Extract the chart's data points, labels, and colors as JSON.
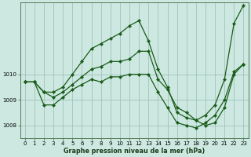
{
  "xlabel": "Graphe pression niveau de la mer (hPa)",
  "bg_color": "#cce8e0",
  "grid_color": "#99bbb5",
  "line_color": "#1a5c1a",
  "series1_x": [
    0,
    1,
    2,
    3,
    4,
    5,
    6,
    7,
    8,
    9,
    10,
    11,
    12,
    13,
    14,
    15,
    16,
    17,
    18,
    19,
    20,
    21,
    22,
    23
  ],
  "series1_y": [
    1009.7,
    1009.7,
    1009.3,
    1009.3,
    1009.5,
    1010.0,
    1010.5,
    1011.0,
    1011.2,
    1011.4,
    1011.6,
    1011.9,
    1012.1,
    1011.3,
    1010.2,
    1009.5,
    1008.5,
    1008.3,
    1008.2,
    1008.4,
    1008.8,
    1009.8,
    1012.0,
    1012.7
  ],
  "series2_x": [
    0,
    1,
    2,
    3,
    4,
    5,
    6,
    7,
    8,
    9,
    10,
    11,
    12,
    13,
    14,
    15,
    16,
    17,
    18,
    19,
    20,
    21,
    22,
    23
  ],
  "series2_y": [
    1009.7,
    1009.7,
    1009.3,
    1009.1,
    1009.3,
    1009.6,
    1009.9,
    1010.2,
    1010.3,
    1010.5,
    1010.5,
    1010.6,
    1010.9,
    1010.9,
    1009.8,
    1009.4,
    1008.7,
    1008.5,
    1008.2,
    1008.0,
    1008.1,
    1008.7,
    1010.0,
    1010.4
  ],
  "series3_x": [
    0,
    1,
    2,
    3,
    4,
    5,
    6,
    7,
    8,
    9,
    10,
    11,
    12,
    13,
    14,
    15,
    16,
    17,
    18,
    19,
    20,
    21,
    22,
    23
  ],
  "series3_y": [
    1009.7,
    1009.7,
    1008.8,
    1008.8,
    1009.1,
    1009.4,
    1009.6,
    1009.8,
    1009.7,
    1009.9,
    1009.9,
    1010.0,
    1010.0,
    1010.0,
    1009.3,
    1008.7,
    1008.1,
    1008.0,
    1007.9,
    1008.1,
    1008.4,
    1009.0,
    1010.1,
    1010.4
  ],
  "ylim": [
    1007.5,
    1012.8
  ],
  "xlim": [
    -0.5,
    23.5
  ],
  "yticks": [
    1008,
    1009,
    1010
  ],
  "xticks": [
    0,
    1,
    2,
    3,
    4,
    5,
    6,
    7,
    8,
    9,
    10,
    11,
    12,
    13,
    14,
    15,
    16,
    17,
    18,
    19,
    20,
    21,
    22,
    23
  ],
  "marker_size": 2.2,
  "linewidth": 0.9,
  "tick_fontsize": 5.0,
  "label_fontsize": 5.8
}
